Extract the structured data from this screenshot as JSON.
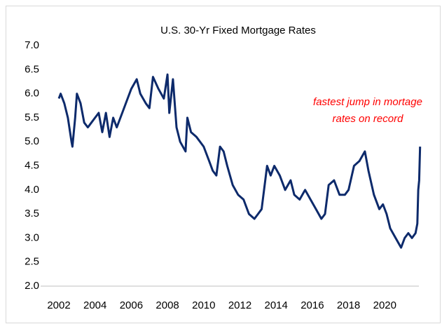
{
  "chart_data": {
    "type": "line",
    "title": "U.S. 30-Yr Fixed Mortgage Rates",
    "annotation": [
      "fastest jump in mortage",
      "rates on record"
    ],
    "annotation_color": "#ff0000",
    "x": [
      2002.0,
      2002.1,
      2002.3,
      2002.5,
      2002.7,
      2002.75,
      2002.9,
      2003.0,
      2003.2,
      2003.4,
      2003.6,
      2003.8,
      2004.0,
      2004.2,
      2004.4,
      2004.6,
      2004.8,
      2005.0,
      2005.2,
      2005.5,
      2005.8,
      2006.0,
      2006.3,
      2006.5,
      2006.8,
      2007.0,
      2007.2,
      2007.5,
      2007.8,
      2008.0,
      2008.1,
      2008.3,
      2008.5,
      2008.7,
      2009.0,
      2009.1,
      2009.3,
      2009.6,
      2010.0,
      2010.3,
      2010.5,
      2010.7,
      2010.9,
      2011.1,
      2011.3,
      2011.6,
      2011.9,
      2012.2,
      2012.5,
      2012.8,
      2013.0,
      2013.2,
      2013.5,
      2013.7,
      2013.9,
      2014.2,
      2014.5,
      2014.8,
      2015.0,
      2015.3,
      2015.6,
      2015.9,
      2016.2,
      2016.5,
      2016.7,
      2016.9,
      2017.2,
      2017.5,
      2017.8,
      2018.0,
      2018.3,
      2018.6,
      2018.9,
      2019.1,
      2019.4,
      2019.7,
      2019.9,
      2020.1,
      2020.3,
      2020.6,
      2020.9,
      2021.1,
      2021.3,
      2021.5,
      2021.7,
      2021.8,
      2021.85,
      2021.9,
      2021.95
    ],
    "series": [
      {
        "name": "30-Yr Fixed",
        "color": "#0d2a6b",
        "values": [
          5.9,
          6.0,
          5.8,
          5.5,
          5.0,
          4.9,
          5.5,
          6.0,
          5.8,
          5.4,
          5.3,
          5.4,
          5.5,
          5.6,
          5.2,
          5.6,
          5.1,
          5.5,
          5.3,
          5.6,
          5.9,
          6.1,
          6.3,
          6.0,
          5.8,
          5.7,
          6.35,
          6.1,
          5.9,
          6.4,
          5.6,
          6.3,
          5.3,
          5.0,
          4.8,
          5.5,
          5.2,
          5.1,
          4.9,
          4.6,
          4.4,
          4.3,
          4.9,
          4.8,
          4.5,
          4.1,
          3.9,
          3.8,
          3.5,
          3.4,
          3.5,
          3.6,
          4.5,
          4.3,
          4.5,
          4.3,
          4.0,
          4.2,
          3.9,
          3.8,
          4.0,
          3.8,
          3.6,
          3.4,
          3.5,
          4.1,
          4.2,
          3.9,
          3.9,
          4.0,
          4.5,
          4.6,
          4.8,
          4.4,
          3.9,
          3.6,
          3.7,
          3.5,
          3.2,
          3.0,
          2.8,
          3.0,
          3.1,
          3.0,
          3.1,
          3.3,
          4.0,
          4.2,
          4.9
        ]
      }
    ],
    "xlim": [
      2002,
      2022
    ],
    "xticks": [
      2002,
      2004,
      2006,
      2008,
      2010,
      2012,
      2014,
      2016,
      2018,
      2020
    ],
    "ylim": [
      2.0,
      7.0
    ],
    "yticks": [
      {
        "value": 2.0,
        "label": "2.0"
      },
      {
        "value": 2.5,
        "label": "2.5"
      },
      {
        "value": 3.0,
        "label": "3.0"
      },
      {
        "value": 3.5,
        "label": "3.5"
      },
      {
        "value": 4.0,
        "label": "4.0"
      },
      {
        "value": 4.5,
        "label": "4.5"
      },
      {
        "value": 5.0,
        "label": "5.0"
      },
      {
        "value": 5.5,
        "label": "5.5"
      },
      {
        "value": 6.0,
        "label": "6.0"
      },
      {
        "value": 6.5,
        "label": "6.5"
      },
      {
        "value": 7.0,
        "label": "7.0"
      }
    ],
    "grid": false
  }
}
